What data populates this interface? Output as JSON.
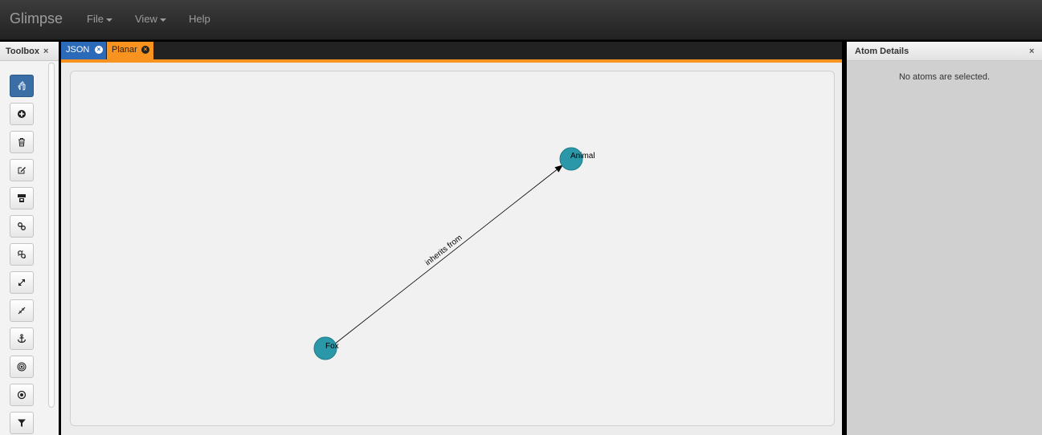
{
  "app": {
    "brand": "Glimpse"
  },
  "nav": {
    "file": "File",
    "view": "View",
    "help": "Help"
  },
  "toolbox": {
    "title": "Toolbox",
    "close": "×",
    "tools": [
      {
        "icon": "pointer-hand-icon",
        "active": true
      },
      {
        "icon": "add-circle-icon",
        "active": false
      },
      {
        "icon": "trash-icon",
        "active": false
      },
      {
        "icon": "edit-icon",
        "active": false
      },
      {
        "icon": "merge-icon",
        "active": false
      },
      {
        "icon": "link-icon",
        "active": false
      },
      {
        "icon": "unlink-icon",
        "active": false
      },
      {
        "icon": "expand-icon",
        "active": false
      },
      {
        "icon": "compress-icon",
        "active": false
      },
      {
        "icon": "anchor-icon",
        "active": false
      },
      {
        "icon": "target-icon",
        "active": false
      },
      {
        "icon": "dot-circle-icon",
        "active": false
      },
      {
        "icon": "filter-icon",
        "active": false
      }
    ]
  },
  "tabs": [
    {
      "label": "JSON",
      "close": "×"
    },
    {
      "label": "Planar",
      "close": "×"
    }
  ],
  "graph": {
    "nodes": [
      {
        "id": "animal",
        "label": "Animal"
      },
      {
        "id": "fox",
        "label": "Fox"
      }
    ],
    "edge": {
      "from": "fox",
      "to": "animal",
      "label": "inherits from"
    },
    "node_color": "#2b98a9"
  },
  "details": {
    "title": "Atom Details",
    "close": "×",
    "empty_message": "No atoms are selected."
  }
}
